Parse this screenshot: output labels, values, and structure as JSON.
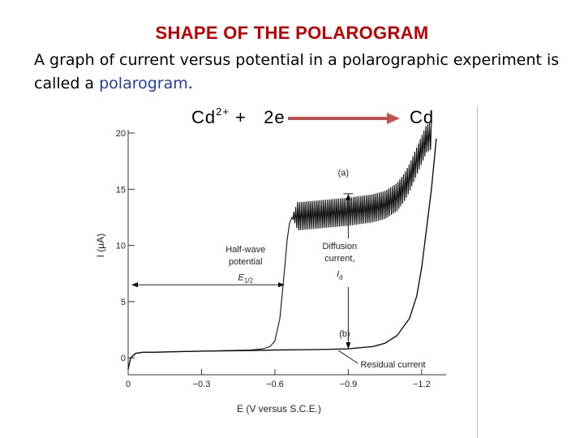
{
  "slide": {
    "title": "SHAPE OF THE POLAROGRAM",
    "desc_part1": "A graph of current versus potential in a polarographic experiment is called a ",
    "desc_highlight": "polarogram",
    "desc_end": ".",
    "reaction": {
      "left_ion": "Cd",
      "left_charge": "2+",
      "plus_electrons": "+   2e",
      "product": "Cd"
    }
  },
  "colors": {
    "title": "#c00000",
    "highlight": "#1f3fa8",
    "arrow": "#c0504d",
    "curve": "#111111"
  },
  "chart_data": {
    "type": "line",
    "title": "",
    "xlabel": "E (V versus S.C.E.)",
    "ylabel": "I (μA)",
    "xlim": [
      0.0,
      -1.3
    ],
    "ylim": [
      -1.5,
      20
    ],
    "xticks": [
      0,
      -0.3,
      -0.6,
      -0.9,
      -1.2
    ],
    "xtick_labels": [
      "0",
      "−0.3",
      "−0.6",
      "−0.9",
      "−1.2"
    ],
    "yticks": [
      0,
      5,
      10,
      15,
      20
    ],
    "ytick_labels": [
      "0",
      "5",
      "10",
      "15",
      "20"
    ],
    "series": [
      {
        "name": "(a)",
        "x": [
          0.0,
          -0.01,
          -0.03,
          -0.06,
          -0.1,
          -0.2,
          -0.3,
          -0.4,
          -0.5,
          -0.55,
          -0.58,
          -0.6,
          -0.62,
          -0.64,
          -0.65,
          -0.66,
          -0.67,
          -0.68,
          -0.7,
          -0.75,
          -0.8,
          -0.9,
          -1.0,
          -1.05,
          -1.1,
          -1.13,
          -1.15,
          -1.17,
          -1.19,
          -1.21,
          -1.22,
          -1.24
        ],
        "y": [
          -1.0,
          0.0,
          0.4,
          0.5,
          0.5,
          0.55,
          0.6,
          0.65,
          0.7,
          0.8,
          1.0,
          1.5,
          3.5,
          8.0,
          10.5,
          12.0,
          12.5,
          12.6,
          12.6,
          12.7,
          12.8,
          13.0,
          13.3,
          13.6,
          14.3,
          15.2,
          16.0,
          17.0,
          18.0,
          19.0,
          19.5,
          19.8
        ],
        "oscillating_from_x": -0.67
      },
      {
        "name": "(b)",
        "x": [
          0.0,
          -0.01,
          -0.03,
          -0.06,
          -0.1,
          -0.2,
          -0.3,
          -0.4,
          -0.5,
          -0.6,
          -0.7,
          -0.8,
          -0.9,
          -0.95,
          -1.0,
          -1.05,
          -1.1,
          -1.15,
          -1.18,
          -1.2,
          -1.22,
          -1.24,
          -1.26
        ],
        "y": [
          -1.0,
          0.0,
          0.4,
          0.5,
          0.5,
          0.55,
          0.6,
          0.62,
          0.65,
          0.7,
          0.72,
          0.75,
          0.8,
          0.9,
          1.0,
          1.3,
          2.0,
          3.5,
          5.5,
          8.0,
          11.5,
          15.0,
          19.5
        ]
      }
    ],
    "annotations": {
      "curve_a": "(a)",
      "curve_b": "(b)",
      "half_wave_line1": "Half-wave",
      "half_wave_line2": "potential",
      "half_wave_symbol": "E",
      "half_wave_sub": "1/2",
      "diffusion_line1": "Diffusion",
      "diffusion_line2": "current,",
      "diffusion_symbol": "I",
      "diffusion_sub": "d",
      "residual": "Residual current",
      "half_wave_x": -0.64,
      "diffusion_x": -0.9,
      "diffusion_top_y": 14.6,
      "diffusion_bottom_y": 0.8
    },
    "grid": false,
    "legend": "none"
  }
}
